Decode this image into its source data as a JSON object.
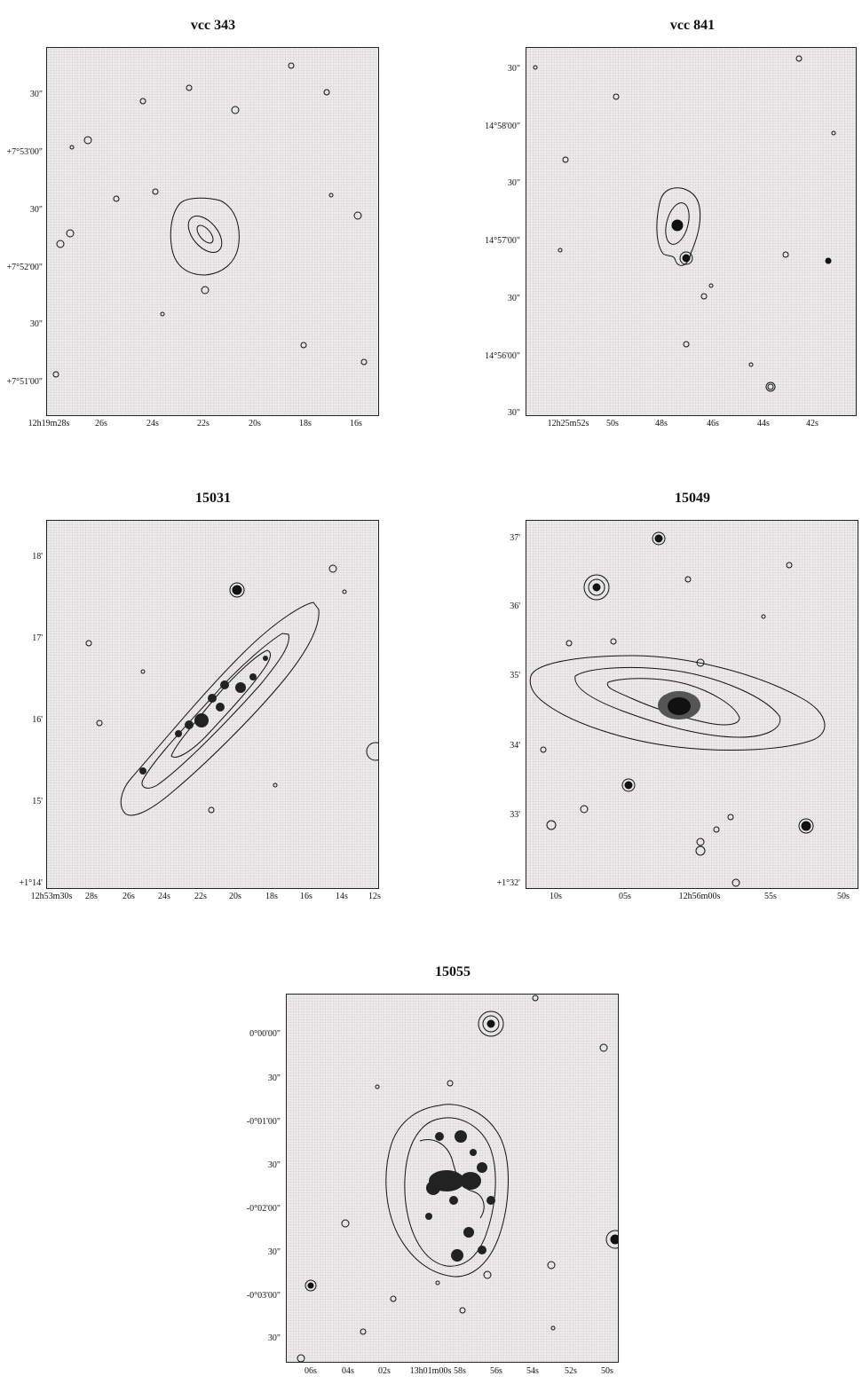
{
  "panels": [
    {
      "title": "vcc 343",
      "yticks": [
        "30\"",
        "+7°53'00\"",
        "30\"",
        "+7°52'00\"",
        "30\"",
        "+7°51'00\""
      ],
      "xticks": [
        "12h19m28s",
        "26s",
        "24s",
        "22s",
        "20s",
        "18s",
        "16s"
      ]
    },
    {
      "title": "vcc 841",
      "yticks": [
        "30\"",
        "14°58'00\"",
        "30\"",
        "14°57'00\"",
        "30\"",
        "14°56'00\"",
        "30\""
      ],
      "xticks": [
        "12h25m52s",
        "50s",
        "48s",
        "46s",
        "44s",
        "42s"
      ]
    },
    {
      "title": "15031",
      "yticks": [
        "18'",
        "17'",
        "16'",
        "15'",
        "+1°14'"
      ],
      "xticks": [
        "12h53m30s",
        "28s",
        "26s",
        "24s",
        "22s",
        "20s",
        "18s",
        "16s",
        "14s",
        "12s"
      ]
    },
    {
      "title": "15049",
      "yticks": [
        "37'",
        "36'",
        "35'",
        "34'",
        "33'",
        "+1°32'"
      ],
      "xticks": [
        "10s",
        "05s",
        "12h56m00s",
        "55s",
        "50s"
      ]
    },
    {
      "title": "15055",
      "yticks": [
        "0°00'00\"",
        "30\"",
        "-0°01'00\"",
        "30\"",
        "-0°02'00\"",
        "30\"",
        "-0°03'00\"",
        "30\""
      ],
      "xticks": [
        "06s",
        "04s",
        "02s",
        "13h01m00s",
        "58s",
        "56s",
        "54s",
        "52s",
        "50s"
      ]
    }
  ]
}
